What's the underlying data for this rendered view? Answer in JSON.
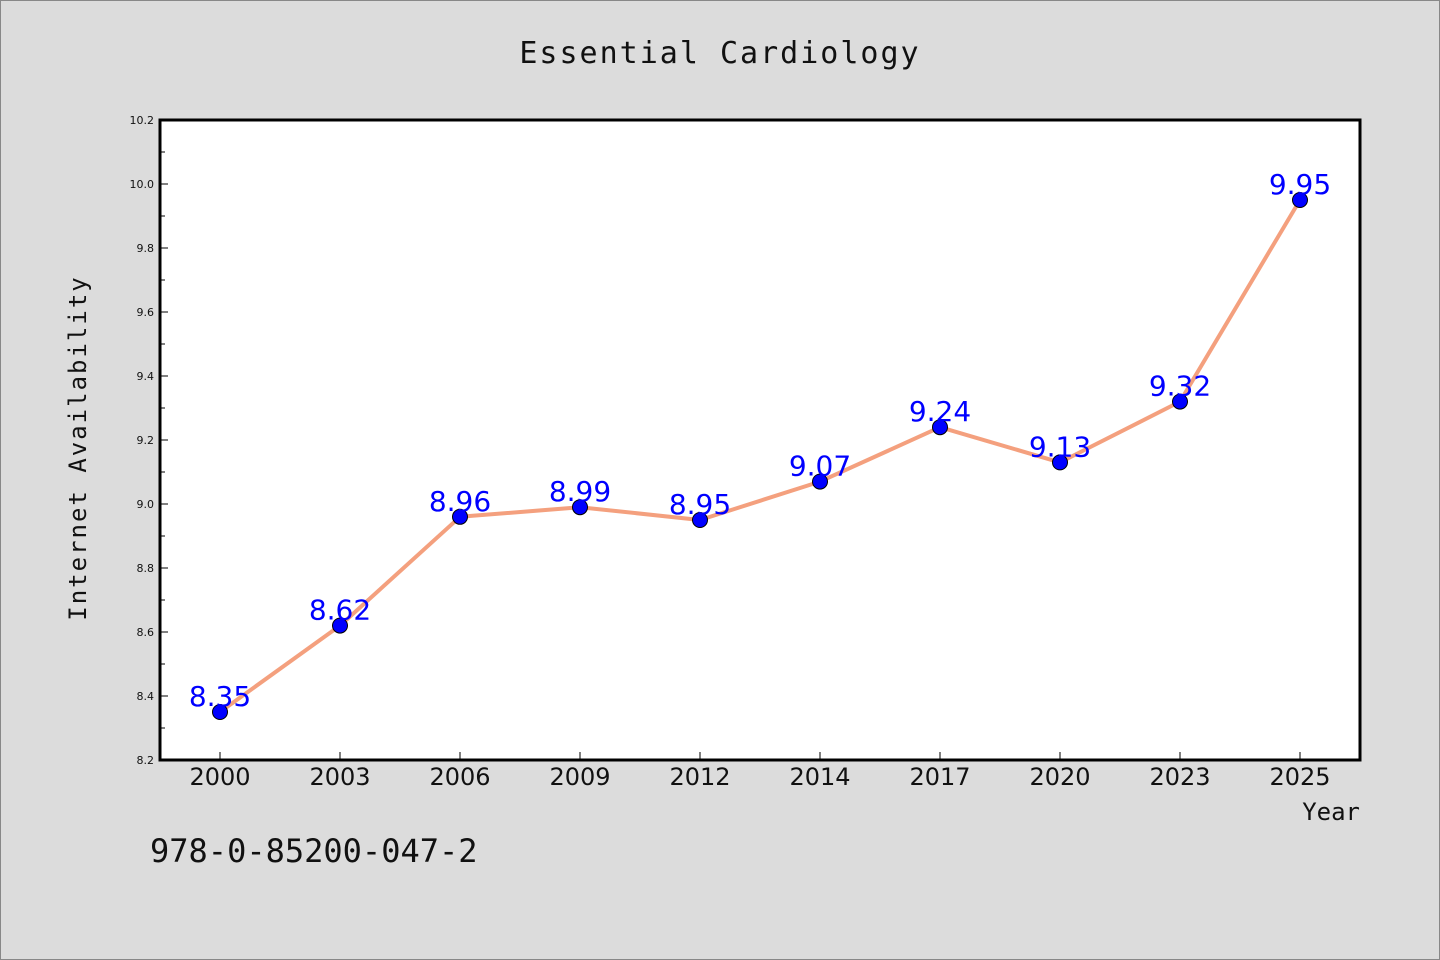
{
  "chart_data": {
    "type": "line",
    "title": "Essential Cardiology",
    "xlabel": "Year",
    "ylabel": "Internet Availability",
    "categories": [
      "2000",
      "2003",
      "2006",
      "2009",
      "2012",
      "2014",
      "2017",
      "2020",
      "2023",
      "2025"
    ],
    "values": [
      8.35,
      8.62,
      8.96,
      8.99,
      8.95,
      9.07,
      9.24,
      9.13,
      9.32,
      9.95
    ],
    "data_labels": [
      "8.35",
      "8.62",
      "8.96",
      "8.99",
      "8.95",
      "9.07",
      "9.24",
      "9.13",
      "9.32",
      "9.95"
    ],
    "ylim": [
      8.2,
      10.2
    ],
    "yticks": [
      "8.2",
      "8.4",
      "8.6",
      "8.8",
      "9.0",
      "9.2",
      "9.4",
      "9.6",
      "9.8",
      "10.0",
      "10.2"
    ],
    "grid": false,
    "line_color": "#f4a07e",
    "marker_color": "#0000ff",
    "label_color": "#0000ff"
  },
  "footnote": "978-0-85200-047-2"
}
